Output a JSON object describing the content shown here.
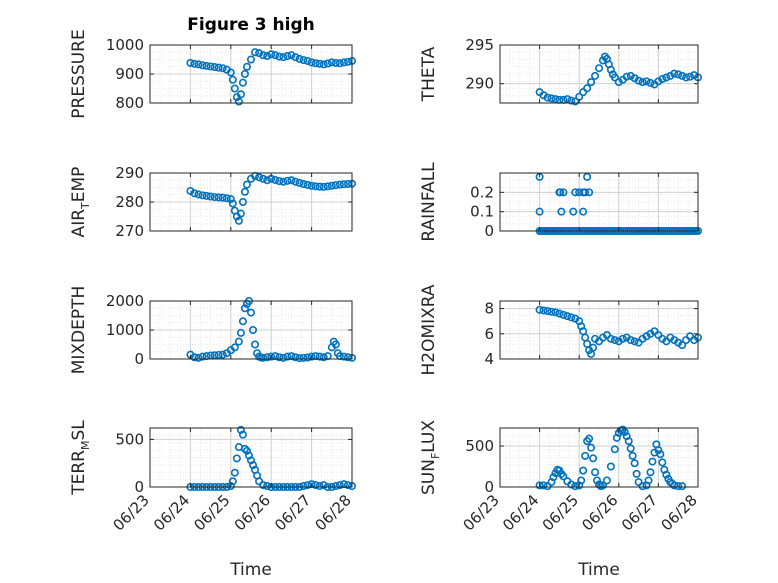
{
  "figure": {
    "title": "Figure 3 high"
  },
  "colors": {
    "marker": "#0072BD",
    "axis": "#262626",
    "grid": "#D0D0D0",
    "minor_grid": "#E0E0E0",
    "background": "#FFFFFF"
  },
  "chart_data": [
    {
      "type": "scatter",
      "ylabel": "PRESSURE",
      "xlabel": "",
      "title": "Figure 3 high",
      "xlim": [
        0,
        5
      ],
      "ylim": [
        800,
        1000
      ],
      "yticks": [
        800,
        900,
        1000
      ],
      "xtick_labels": [],
      "grid": true,
      "x": [
        1.0,
        1.1,
        1.2,
        1.3,
        1.4,
        1.5,
        1.6,
        1.7,
        1.8,
        1.9,
        2.0,
        2.05,
        2.1,
        2.15,
        2.2,
        2.25,
        2.3,
        2.35,
        2.4,
        2.5,
        2.6,
        2.7,
        2.8,
        2.9,
        3.0,
        3.1,
        3.2,
        3.3,
        3.4,
        3.5,
        3.6,
        3.7,
        3.8,
        3.9,
        4.0,
        4.1,
        4.2,
        4.3,
        4.4,
        4.5,
        4.6,
        4.7,
        4.8,
        4.9,
        5.0
      ],
      "y": [
        938,
        935,
        933,
        930,
        928,
        926,
        924,
        922,
        920,
        915,
        905,
        880,
        850,
        820,
        805,
        830,
        870,
        900,
        925,
        950,
        975,
        972,
        965,
        962,
        968,
        965,
        960,
        958,
        962,
        965,
        958,
        952,
        948,
        945,
        940,
        937,
        935,
        933,
        936,
        940,
        938,
        937,
        940,
        942,
        945
      ]
    },
    {
      "type": "scatter",
      "ylabel": "THETA",
      "xlabel": "",
      "xlim": [
        0,
        5
      ],
      "ylim": [
        287.5,
        295
      ],
      "yticks": [
        290,
        295
      ],
      "xtick_labels": [],
      "grid": true,
      "x": [
        1.0,
        1.1,
        1.2,
        1.3,
        1.4,
        1.5,
        1.6,
        1.7,
        1.8,
        1.9,
        2.0,
        2.1,
        2.2,
        2.3,
        2.4,
        2.5,
        2.6,
        2.65,
        2.7,
        2.75,
        2.8,
        2.85,
        2.9,
        3.0,
        3.1,
        3.2,
        3.3,
        3.4,
        3.5,
        3.6,
        3.7,
        3.8,
        3.9,
        4.0,
        4.1,
        4.2,
        4.3,
        4.4,
        4.5,
        4.6,
        4.7,
        4.8,
        4.9,
        5.0
      ],
      "y": [
        288.9,
        288.5,
        288.2,
        288.1,
        288.0,
        287.9,
        287.9,
        288.0,
        287.8,
        287.7,
        288.3,
        288.9,
        289.4,
        290.2,
        291.0,
        292.0,
        293.0,
        293.5,
        293.2,
        292.5,
        291.8,
        291.2,
        290.8,
        290.2,
        290.5,
        290.9,
        291.0,
        290.7,
        290.4,
        290.2,
        290.3,
        290.1,
        289.9,
        290.3,
        290.6,
        290.8,
        291.0,
        291.3,
        291.2,
        291.0,
        290.8,
        290.9,
        291.1,
        290.8
      ]
    },
    {
      "type": "scatter",
      "ylabel": "AIR_TEMP",
      "ylabel_parts": {
        "main": "AIR",
        "sub": "T",
        "rest": "EMP"
      },
      "xlabel": "",
      "xlim": [
        0,
        5
      ],
      "ylim": [
        270,
        290
      ],
      "yticks": [
        270,
        280,
        290
      ],
      "xtick_labels": [],
      "grid": true,
      "x": [
        1.0,
        1.1,
        1.2,
        1.3,
        1.4,
        1.5,
        1.6,
        1.7,
        1.8,
        1.9,
        2.0,
        2.05,
        2.1,
        2.15,
        2.2,
        2.25,
        2.3,
        2.35,
        2.4,
        2.5,
        2.6,
        2.7,
        2.8,
        2.9,
        3.0,
        3.1,
        3.2,
        3.3,
        3.4,
        3.5,
        3.6,
        3.7,
        3.8,
        3.9,
        4.0,
        4.1,
        4.2,
        4.3,
        4.4,
        4.5,
        4.6,
        4.7,
        4.8,
        4.9,
        5.0
      ],
      "y": [
        283.8,
        283.0,
        282.6,
        282.3,
        282.1,
        281.9,
        281.7,
        281.6,
        281.5,
        281.3,
        281.0,
        279.5,
        277.0,
        275.0,
        273.5,
        276.0,
        280.0,
        283.5,
        286.0,
        288.0,
        289.0,
        288.5,
        288.0,
        287.5,
        288.0,
        287.6,
        287.2,
        287.0,
        287.3,
        287.5,
        287.0,
        286.6,
        286.2,
        285.9,
        285.6,
        285.4,
        285.3,
        285.2,
        285.4,
        285.6,
        285.8,
        286.0,
        286.1,
        286.2,
        286.3
      ]
    },
    {
      "type": "scatter",
      "ylabel": "RAINFALL",
      "xlabel": "",
      "xlim": [
        0,
        5
      ],
      "ylim": [
        0,
        0.3
      ],
      "yticks": [
        0,
        0.1,
        0.2
      ],
      "ytick_labels": [
        "0",
        "0.1",
        "0.2"
      ],
      "xtick_labels": [],
      "grid": true,
      "x": [
        1.0,
        1.0,
        1.0,
        1.05,
        1.1,
        1.15,
        1.2,
        1.25,
        1.3,
        1.35,
        1.4,
        1.45,
        1.5,
        1.55,
        1.6,
        1.65,
        1.7,
        1.75,
        1.8,
        1.85,
        1.9,
        1.95,
        2.0,
        2.05,
        2.1,
        2.15,
        2.2,
        2.25,
        2.3,
        2.35,
        2.4,
        2.45,
        2.5,
        2.55,
        2.6,
        2.65,
        2.7,
        2.75,
        2.8,
        2.85,
        2.9,
        2.95,
        3.0,
        3.05,
        3.1,
        3.15,
        3.2,
        3.25,
        3.3,
        3.35,
        3.4,
        3.45,
        3.5,
        3.55,
        3.6,
        3.65,
        3.7,
        3.75,
        3.8,
        3.85,
        3.9,
        3.95,
        4.0,
        4.05,
        4.1,
        4.15,
        4.2,
        4.25,
        4.3,
        4.35,
        4.4,
        4.45,
        4.5,
        4.55,
        4.6,
        4.65,
        4.7,
        4.75,
        4.8,
        4.85,
        4.9,
        4.95,
        5.0,
        1.5,
        1.52,
        1.55,
        1.6,
        1.85,
        1.9,
        2.0,
        2.1,
        2.1,
        2.15,
        2.2,
        2.25
      ],
      "y": [
        0.28,
        0.1,
        0,
        0,
        0,
        0,
        0,
        0,
        0,
        0,
        0,
        0,
        0,
        0,
        0,
        0,
        0,
        0,
        0,
        0,
        0,
        0,
        0,
        0,
        0,
        0,
        0,
        0,
        0,
        0,
        0,
        0,
        0,
        0,
        0,
        0,
        0,
        0,
        0,
        0,
        0,
        0,
        0,
        0,
        0,
        0,
        0,
        0,
        0,
        0,
        0,
        0,
        0,
        0,
        0,
        0,
        0,
        0,
        0,
        0,
        0,
        0,
        0,
        0,
        0,
        0,
        0,
        0,
        0,
        0,
        0,
        0,
        0,
        0,
        0,
        0,
        0,
        0,
        0,
        0,
        0,
        0,
        0,
        0.2,
        0.2,
        0.1,
        0.2,
        0.1,
        0.2,
        0.2,
        0.2,
        0.1,
        0.2,
        0.28,
        0.2
      ]
    },
    {
      "type": "scatter",
      "ylabel": "MIXDEPTH",
      "xlabel": "",
      "xlim": [
        0,
        5
      ],
      "ylim": [
        0,
        2000
      ],
      "yticks": [
        0,
        1000,
        2000
      ],
      "xtick_labels": [],
      "grid": true,
      "x": [
        1.0,
        1.1,
        1.2,
        1.3,
        1.4,
        1.5,
        1.6,
        1.7,
        1.8,
        1.9,
        2.0,
        2.1,
        2.2,
        2.25,
        2.3,
        2.35,
        2.4,
        2.45,
        2.5,
        2.55,
        2.6,
        2.65,
        2.7,
        2.75,
        2.8,
        2.9,
        3.0,
        3.1,
        3.2,
        3.3,
        3.4,
        3.5,
        3.6,
        3.7,
        3.8,
        3.9,
        4.0,
        4.1,
        4.2,
        4.3,
        4.4,
        4.5,
        4.55,
        4.6,
        4.65,
        4.7,
        4.8,
        4.9,
        5.0
      ],
      "y": [
        150,
        60,
        40,
        80,
        100,
        120,
        130,
        140,
        150,
        200,
        300,
        400,
        600,
        900,
        1300,
        1750,
        1900,
        2000,
        1600,
        1000,
        500,
        200,
        80,
        50,
        40,
        60,
        80,
        100,
        60,
        40,
        80,
        100,
        60,
        30,
        40,
        50,
        80,
        100,
        80,
        60,
        100,
        400,
        600,
        500,
        200,
        100,
        80,
        60,
        40
      ]
    },
    {
      "type": "scatter",
      "ylabel": "H2OMIXRA",
      "xlabel": "",
      "xlim": [
        0,
        5
      ],
      "ylim": [
        4,
        8.6
      ],
      "yticks": [
        4,
        6,
        8
      ],
      "xtick_labels": [],
      "grid": true,
      "x": [
        1.0,
        1.1,
        1.2,
        1.3,
        1.4,
        1.5,
        1.6,
        1.7,
        1.8,
        1.9,
        2.0,
        2.05,
        2.1,
        2.15,
        2.2,
        2.25,
        2.3,
        2.35,
        2.4,
        2.5,
        2.6,
        2.7,
        2.8,
        2.9,
        3.0,
        3.1,
        3.2,
        3.3,
        3.4,
        3.5,
        3.6,
        3.7,
        3.8,
        3.9,
        4.0,
        4.1,
        4.2,
        4.3,
        4.4,
        4.5,
        4.6,
        4.7,
        4.8,
        4.9,
        5.0
      ],
      "y": [
        7.9,
        7.85,
        7.8,
        7.75,
        7.7,
        7.6,
        7.5,
        7.4,
        7.3,
        7.2,
        7.0,
        6.6,
        6.2,
        5.7,
        5.2,
        4.7,
        4.4,
        4.9,
        5.6,
        5.4,
        5.7,
        5.9,
        5.6,
        5.5,
        5.4,
        5.6,
        5.7,
        5.5,
        5.4,
        5.3,
        5.6,
        5.8,
        6.0,
        6.2,
        5.9,
        5.6,
        5.4,
        5.7,
        5.5,
        5.3,
        5.1,
        5.5,
        5.8,
        5.5,
        5.7
      ]
    },
    {
      "type": "scatter",
      "ylabel": "TERR_MSL",
      "ylabel_parts": {
        "main": "TERR",
        "sub": "M",
        "rest": "SL"
      },
      "xlabel": "Time",
      "xlim": [
        0,
        5
      ],
      "ylim": [
        0,
        620
      ],
      "yticks": [
        0,
        500
      ],
      "xtick_labels": [
        "06/23",
        "06/24",
        "06/25",
        "06/26",
        "06/27",
        "06/28"
      ],
      "grid": true,
      "x": [
        1.0,
        1.1,
        1.2,
        1.3,
        1.4,
        1.5,
        1.6,
        1.7,
        1.8,
        1.9,
        2.0,
        2.05,
        2.1,
        2.15,
        2.2,
        2.25,
        2.3,
        2.35,
        2.4,
        2.45,
        2.5,
        2.55,
        2.6,
        2.65,
        2.7,
        2.8,
        2.9,
        3.0,
        3.1,
        3.2,
        3.3,
        3.4,
        3.5,
        3.6,
        3.7,
        3.8,
        3.9,
        4.0,
        4.1,
        4.2,
        4.3,
        4.4,
        4.5,
        4.6,
        4.7,
        4.8,
        4.9,
        5.0
      ],
      "y": [
        0,
        0,
        0,
        0,
        0,
        0,
        0,
        0,
        0,
        0,
        10,
        60,
        150,
        300,
        420,
        600,
        550,
        400,
        380,
        330,
        280,
        230,
        180,
        120,
        60,
        20,
        10,
        0,
        0,
        0,
        0,
        0,
        0,
        0,
        0,
        10,
        20,
        30,
        20,
        10,
        20,
        0,
        0,
        10,
        20,
        30,
        20,
        10
      ]
    },
    {
      "type": "scatter",
      "ylabel": "SUN_FLUX",
      "ylabel_parts": {
        "main": "SUN",
        "sub": "F",
        "rest": "LUX"
      },
      "xlabel": "Time",
      "xlim": [
        0,
        5
      ],
      "ylim": [
        0,
        720
      ],
      "yticks": [
        0,
        500
      ],
      "xtick_labels": [
        "06/23",
        "06/24",
        "06/25",
        "06/26",
        "06/27",
        "06/28"
      ],
      "grid": true,
      "x": [
        1.0,
        1.1,
        1.2,
        1.3,
        1.35,
        1.4,
        1.45,
        1.5,
        1.55,
        1.6,
        1.7,
        1.8,
        1.9,
        2.0,
        2.05,
        2.1,
        2.15,
        2.2,
        2.25,
        2.3,
        2.35,
        2.4,
        2.45,
        2.5,
        2.55,
        2.6,
        2.7,
        2.8,
        2.9,
        2.95,
        3.0,
        3.05,
        3.1,
        3.15,
        3.2,
        3.25,
        3.3,
        3.35,
        3.4,
        3.45,
        3.5,
        3.6,
        3.7,
        3.75,
        3.8,
        3.85,
        3.9,
        3.95,
        4.0,
        4.05,
        4.1,
        4.15,
        4.2,
        4.25,
        4.3,
        4.35,
        4.4,
        4.5,
        4.6
      ],
      "y": [
        20,
        20,
        10,
        60,
        120,
        170,
        210,
        200,
        160,
        130,
        70,
        30,
        10,
        20,
        80,
        200,
        380,
        560,
        590,
        480,
        350,
        180,
        80,
        30,
        10,
        20,
        80,
        250,
        460,
        600,
        660,
        690,
        700,
        670,
        620,
        560,
        470,
        380,
        290,
        160,
        60,
        10,
        20,
        80,
        180,
        310,
        420,
        520,
        450,
        400,
        300,
        210,
        150,
        100,
        60,
        40,
        20,
        10,
        10
      ]
    }
  ]
}
